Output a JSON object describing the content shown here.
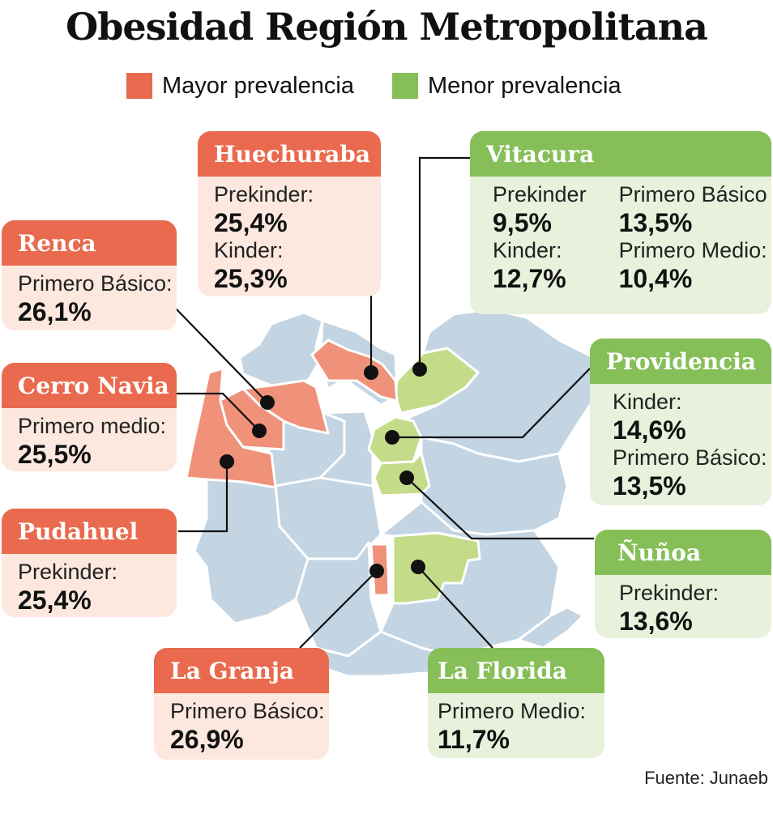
{
  "title": "Obesidad Región Metropolitana",
  "legend": [
    {
      "label": "Mayor prevalencia",
      "color": "#e96a4e"
    },
    {
      "label": "Menor prevalencia",
      "color": "#86bf58"
    }
  ],
  "communes": {
    "huechuraba": {
      "name": "Huechuraba",
      "category": "mayor",
      "stats": [
        {
          "label": "Prekinder:",
          "value": "25,4%"
        },
        {
          "label": "Kinder:",
          "value": "25,3%"
        }
      ]
    },
    "renca": {
      "name": "Renca",
      "category": "mayor",
      "stats": [
        {
          "label": "Primero Básico:",
          "value": "26,1%"
        }
      ]
    },
    "cerro_navia": {
      "name": "Cerro Navia",
      "category": "mayor",
      "stats": [
        {
          "label": "Primero medio:",
          "value": "25,5%"
        }
      ]
    },
    "pudahuel": {
      "name": "Pudahuel",
      "category": "mayor",
      "stats": [
        {
          "label": "Prekinder:",
          "value": "25,4%"
        }
      ]
    },
    "la_granja": {
      "name": "La Granja",
      "category": "mayor",
      "stats": [
        {
          "label": "Primero Básico:",
          "value": "26,9%"
        }
      ]
    },
    "vitacura": {
      "name": "Vitacura",
      "category": "menor",
      "stats": [
        {
          "label": "Prekinder",
          "value": "9,5%"
        },
        {
          "label": "Kinder:",
          "value": "12,7%"
        },
        {
          "label": "Primero Básico",
          "value": "13,5%"
        },
        {
          "label": "Primero Medio:",
          "value": "10,4%"
        }
      ]
    },
    "providencia": {
      "name": "Providencia",
      "category": "menor",
      "stats": [
        {
          "label": "Kinder:",
          "value": "14,6%"
        },
        {
          "label": "Primero Básico:",
          "value": "13,5%"
        }
      ]
    },
    "nunoa": {
      "name": "Ñuñoa",
      "category": "menor",
      "stats": [
        {
          "label": "Prekinder:",
          "value": "13,6%"
        }
      ]
    },
    "la_florida": {
      "name": "La Florida",
      "category": "menor",
      "stats": [
        {
          "label": "Primero Medio:",
          "value": "11,7%"
        }
      ]
    }
  },
  "source": "Fuente: Junaeb",
  "colors": {
    "base_region": "#c3d4e2",
    "region_border": "#ffffff",
    "mayor": "#f0917a",
    "menor": "#c4dc8a",
    "leader_line": "#111111"
  }
}
